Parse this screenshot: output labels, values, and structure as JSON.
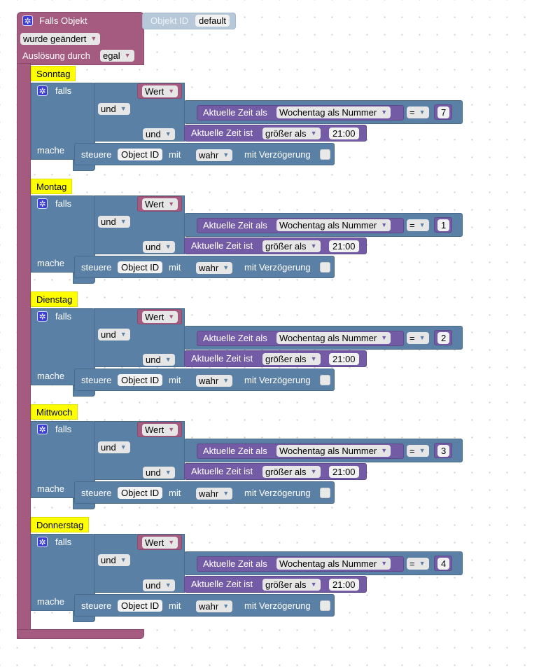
{
  "trigger": {
    "title": "Falls Objekt",
    "condition": "wurde geändert",
    "trigger_by_label": "Auslösung durch",
    "trigger_by_value": "egal"
  },
  "object_id_block": {
    "label": "Objekt ID",
    "value": "default"
  },
  "sections": [
    {
      "comment": "Sonntag",
      "if_label": "falls",
      "value_label": "Wert",
      "and_label": "und",
      "time_label": "Aktuelle Zeit als",
      "time_format": "Wochentag als Nummer",
      "operator": "=",
      "number": "7",
      "time_is_label": "Aktuelle Zeit ist",
      "compare": "größer als",
      "time_value": "21:00",
      "do_label": "mache",
      "control_label": "steuere",
      "control_target": "Object ID",
      "with_label": "mit",
      "with_value": "wahr",
      "delay_label": "mit Verzögerung"
    },
    {
      "comment": "Montag",
      "if_label": "falls",
      "value_label": "Wert",
      "and_label": "und",
      "time_label": "Aktuelle Zeit als",
      "time_format": "Wochentag als Nummer",
      "operator": "=",
      "number": "1",
      "time_is_label": "Aktuelle Zeit ist",
      "compare": "größer als",
      "time_value": "21:00",
      "do_label": "mache",
      "control_label": "steuere",
      "control_target": "Object ID",
      "with_label": "mit",
      "with_value": "wahr",
      "delay_label": "mit Verzögerung"
    },
    {
      "comment": "Dienstag",
      "if_label": "falls",
      "value_label": "Wert",
      "and_label": "und",
      "time_label": "Aktuelle Zeit als",
      "time_format": "Wochentag als Nummer",
      "operator": "=",
      "number": "2",
      "time_is_label": "Aktuelle Zeit ist",
      "compare": "größer als",
      "time_value": "21:00",
      "do_label": "mache",
      "control_label": "steuere",
      "control_target": "Object ID",
      "with_label": "mit",
      "with_value": "wahr",
      "delay_label": "mit Verzögerung"
    },
    {
      "comment": "Mittwoch",
      "if_label": "falls",
      "value_label": "Wert",
      "and_label": "und",
      "time_label": "Aktuelle Zeit als",
      "time_format": "Wochentag als Nummer",
      "operator": "=",
      "number": "3",
      "time_is_label": "Aktuelle Zeit ist",
      "compare": "größer als",
      "time_value": "21:00",
      "do_label": "mache",
      "control_label": "steuere",
      "control_target": "Object ID",
      "with_label": "mit",
      "with_value": "wahr",
      "delay_label": "mit Verzögerung"
    },
    {
      "comment": "Donnerstag",
      "if_label": "falls",
      "value_label": "Wert",
      "and_label": "und",
      "time_label": "Aktuelle Zeit als",
      "time_format": "Wochentag als Nummer",
      "operator": "=",
      "number": "4",
      "time_is_label": "Aktuelle Zeit ist",
      "compare": "größer als",
      "time_value": "21:00",
      "do_label": "mache",
      "control_label": "steuere",
      "control_target": "Object ID",
      "with_label": "mit",
      "with_value": "wahr",
      "delay_label": "mit Verzögerung"
    }
  ],
  "colors": {
    "trigger": "#a55b80",
    "control": "#5b80a5",
    "logic": "#5b80a5",
    "time": "#745ba5",
    "comment": "#ffff00"
  },
  "icons": {
    "block_settings": "gear-icon",
    "dropdown": "triangle-down-icon"
  }
}
